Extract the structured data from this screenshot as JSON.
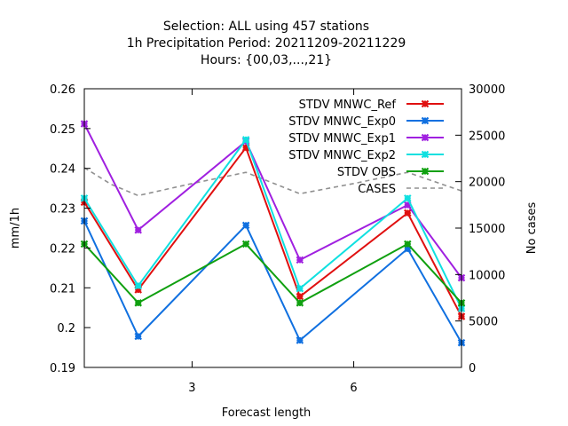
{
  "title_lines": [
    "Selection: ALL using   457 stations",
    "1h Precipitation    Period: 20211209-20211229",
    "Hours: {00,03,...,21}"
  ],
  "chart_data": {
    "type": "line",
    "x": [
      1,
      2,
      4,
      5,
      7,
      8
    ],
    "xlabel": "Forecast length",
    "ylabel": "mm/1h",
    "y2label": "No cases",
    "xlim": [
      1,
      8
    ],
    "ylim": [
      0.19,
      0.26
    ],
    "y2lim": [
      0,
      30000
    ],
    "xticks": [
      3,
      6
    ],
    "yticks": [
      "0.19",
      "0.2",
      "0.21",
      "0.22",
      "0.23",
      "0.24",
      "0.25",
      "0.26"
    ],
    "y2ticks": [
      "0",
      "5000",
      "10000",
      "15000",
      "20000",
      "25000",
      "30000"
    ],
    "grid": false,
    "legend_position": "top-right",
    "series": [
      {
        "name": "STDV MNWC_Ref",
        "color": "#e01010",
        "values": [
          0.2315,
          0.2095,
          0.2452,
          0.2078,
          0.2288,
          0.2028
        ]
      },
      {
        "name": "STDV MNWC_Exp0",
        "color": "#1070e0",
        "values": [
          0.2268,
          0.1978,
          0.2257,
          0.1968,
          0.2198,
          0.1962
        ]
      },
      {
        "name": "STDV MNWC_Exp1",
        "color": "#a020e0",
        "values": [
          0.2512,
          0.2245,
          0.2468,
          0.217,
          0.2308,
          0.2125
        ]
      },
      {
        "name": "STDV MNWC_Exp2",
        "color": "#10e0e0",
        "values": [
          0.2325,
          0.2105,
          0.2472,
          0.2098,
          0.2325,
          0.2048
        ]
      },
      {
        "name": "STDV OBS",
        "color": "#10a010",
        "values": [
          0.221,
          0.2062,
          0.221,
          0.2062,
          0.221,
          0.2062
        ]
      }
    ],
    "cases": {
      "name": "CASES",
      "color": "#909090",
      "x": [
        1,
        1.5,
        2,
        3,
        4,
        5,
        6,
        7,
        8
      ],
      "values": [
        21500,
        19700,
        18500,
        19800,
        21000,
        18700,
        19800,
        21000,
        19000
      ]
    }
  }
}
